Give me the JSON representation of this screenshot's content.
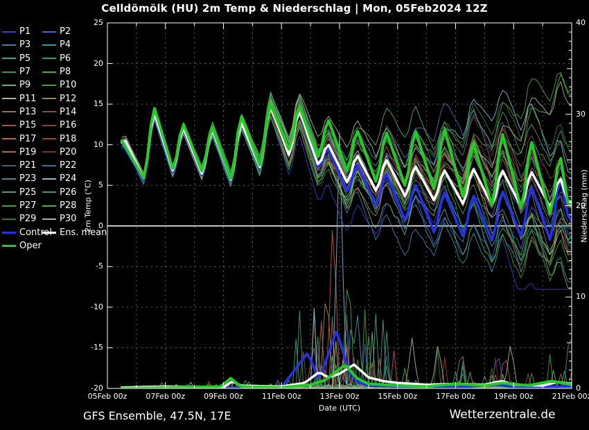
{
  "title": "Celldömölk  (HU)  2m Temp & Niederschlag | Mon, 05Feb2024 12Z",
  "footer": {
    "left": "GFS Ensemble, 47.5N, 17E",
    "right": "Wetterzentrale.de"
  },
  "legend": {
    "members": [
      {
        "label": "P1",
        "color": "#3a3ad0"
      },
      {
        "label": "P2",
        "color": "#3c64e0"
      },
      {
        "label": "P3",
        "color": "#3880b4"
      },
      {
        "label": "P4",
        "color": "#28a0a0"
      },
      {
        "label": "P5",
        "color": "#30aa8c"
      },
      {
        "label": "P6",
        "color": "#2ea060"
      },
      {
        "label": "P7",
        "color": "#30a044"
      },
      {
        "label": "P8",
        "color": "#42b042"
      },
      {
        "label": "P9",
        "color": "#7aa87a"
      },
      {
        "label": "P10",
        "color": "#48a040"
      },
      {
        "label": "P11",
        "color": "#b4b478"
      },
      {
        "label": "P12",
        "color": "#a08652"
      },
      {
        "label": "P13",
        "color": "#96704a"
      },
      {
        "label": "P14",
        "color": "#7e583e"
      },
      {
        "label": "P15",
        "color": "#a05448"
      },
      {
        "label": "P16",
        "color": "#8a4434"
      },
      {
        "label": "P17",
        "color": "#c05a44"
      },
      {
        "label": "P18",
        "color": "#a43c2e"
      },
      {
        "label": "P19",
        "color": "#b66455"
      },
      {
        "label": "P20",
        "color": "#7e2e2e"
      },
      {
        "label": "P21",
        "color": "#48607e"
      },
      {
        "label": "P22",
        "color": "#4c6ea0"
      },
      {
        "label": "P23",
        "color": "#3a8a9a"
      },
      {
        "label": "P24",
        "color": "#7cbad6"
      },
      {
        "label": "P25",
        "color": "#4a9c7c"
      },
      {
        "label": "P26",
        "color": "#3aa06a"
      },
      {
        "label": "P27",
        "color": "#40a442"
      },
      {
        "label": "P28",
        "color": "#4cae4c"
      },
      {
        "label": "P29",
        "color": "#2e7e2e"
      },
      {
        "label": "P30",
        "color": "#b2b284"
      }
    ],
    "control": {
      "label": "Control",
      "color": "#2233ee"
    },
    "ens_mean": {
      "label": "Ens. mean",
      "color": "#ffffff"
    },
    "oper": {
      "label": "Oper",
      "color": "#22cc22"
    }
  },
  "chart_data": {
    "type": "line",
    "x_axis": {
      "label": "Date (UTC)",
      "days_total": 16,
      "tick_labels": [
        "05Feb 00z",
        "07Feb 00z",
        "09Feb 00z",
        "11Feb 00z",
        "13Feb 00z",
        "15Feb 00z",
        "17Feb 00z",
        "19Feb 00z",
        "21Feb 00z"
      ],
      "label_day_offsets": [
        0,
        2,
        4,
        6,
        8,
        10,
        12,
        14,
        16
      ],
      "gridline_every_days": 1
    },
    "y_left": {
      "label": "2m Temp (°C)",
      "min": -20,
      "max": 25,
      "tick_step": 5,
      "tick_values": [
        25,
        20,
        15,
        10,
        5,
        0,
        -5,
        -10,
        -15,
        -20
      ],
      "tick_labels": [
        "25",
        "20",
        "15",
        "10",
        "5",
        "0",
        "-5",
        "-10",
        "-15",
        "-20"
      ],
      "zero_line": 0
    },
    "y_right": {
      "label": "Niederschlag (mm)",
      "min": 0,
      "max": 40,
      "tick_values": [
        0,
        10,
        20,
        30,
        40
      ],
      "tick_labels": [
        "0",
        "10",
        "20",
        "30",
        "40"
      ]
    },
    "temperature_c": {
      "ens_mean": [
        [
          0.5,
          10.3
        ],
        [
          0.58,
          10.8
        ],
        [
          1.29,
          5.6
        ],
        [
          1.58,
          14.3
        ],
        [
          2.29,
          6.4
        ],
        [
          2.58,
          12.4
        ],
        [
          3.29,
          6.1
        ],
        [
          3.58,
          12.2
        ],
        [
          4.29,
          5.3
        ],
        [
          4.58,
          13.1
        ],
        [
          5.29,
          6.9
        ],
        [
          5.58,
          15.1
        ],
        [
          6.29,
          8.4
        ],
        [
          6.58,
          14.6
        ],
        [
          7.29,
          7.2
        ],
        [
          7.58,
          10.3
        ],
        [
          8.29,
          5.1
        ],
        [
          8.58,
          8.9
        ],
        [
          9.29,
          4.1
        ],
        [
          9.58,
          8.4
        ],
        [
          10.29,
          3.4
        ],
        [
          10.58,
          7.6
        ],
        [
          11.29,
          2.9
        ],
        [
          11.58,
          7.1
        ],
        [
          12.29,
          2.5
        ],
        [
          12.58,
          7.3
        ],
        [
          13.29,
          2.3
        ],
        [
          13.58,
          7.1
        ],
        [
          14.29,
          2.1
        ],
        [
          14.58,
          6.9
        ],
        [
          15.29,
          2.1
        ],
        [
          15.58,
          6.3
        ],
        [
          15.85,
          3.1
        ],
        [
          16,
          2.9
        ]
      ],
      "control": [
        [
          0.5,
          10.2
        ],
        [
          1.29,
          5.4
        ],
        [
          1.58,
          14.1
        ],
        [
          2.29,
          6.2
        ],
        [
          2.58,
          12.2
        ],
        [
          3.29,
          5.9
        ],
        [
          3.58,
          12.1
        ],
        [
          4.29,
          5.1
        ],
        [
          4.58,
          13.3
        ],
        [
          5.29,
          6.7
        ],
        [
          5.58,
          15.3
        ],
        [
          6.29,
          8.7
        ],
        [
          6.58,
          15.0
        ],
        [
          7.29,
          6.8
        ],
        [
          7.58,
          9.8
        ],
        [
          8.29,
          3.9
        ],
        [
          8.58,
          7.8
        ],
        [
          9.29,
          2.2
        ],
        [
          9.58,
          6.8
        ],
        [
          10.29,
          0.4
        ],
        [
          10.58,
          5.4
        ],
        [
          11.29,
          -1.1
        ],
        [
          11.58,
          4.4
        ],
        [
          12.29,
          -1.6
        ],
        [
          12.58,
          4.1
        ],
        [
          13.29,
          -2.1
        ],
        [
          13.58,
          4.6
        ],
        [
          14.29,
          -1.6
        ],
        [
          14.58,
          5.2
        ],
        [
          15.29,
          -2.1
        ],
        [
          15.58,
          6.6
        ],
        [
          15.85,
          1.4
        ],
        [
          16,
          0.6
        ]
      ],
      "oper": [
        [
          0.5,
          10.5
        ],
        [
          1.29,
          5.6
        ],
        [
          1.58,
          15.0
        ],
        [
          2.29,
          6.6
        ],
        [
          2.58,
          12.9
        ],
        [
          3.29,
          6.4
        ],
        [
          3.58,
          12.6
        ],
        [
          4.29,
          5.4
        ],
        [
          4.58,
          13.9
        ],
        [
          5.29,
          7.1
        ],
        [
          5.58,
          15.4
        ],
        [
          6.29,
          9.1
        ],
        [
          6.58,
          15.1
        ],
        [
          7.29,
          8.1
        ],
        [
          7.58,
          13.4
        ],
        [
          8.29,
          6.4
        ],
        [
          8.58,
          12.1
        ],
        [
          9.29,
          5.1
        ],
        [
          9.58,
          11.9
        ],
        [
          10.29,
          4.6
        ],
        [
          10.58,
          12.1
        ],
        [
          11.29,
          4.1
        ],
        [
          11.58,
          12.4
        ],
        [
          12.29,
          3.1
        ],
        [
          12.58,
          10.6
        ],
        [
          13.29,
          2.1
        ],
        [
          13.58,
          11.9
        ],
        [
          14.29,
          1.6
        ],
        [
          14.58,
          10.9
        ],
        [
          15.29,
          0.9
        ],
        [
          15.58,
          9.4
        ],
        [
          15.85,
          2.9
        ],
        [
          16,
          2.4
        ]
      ]
    },
    "precipitation_mm": {
      "ens_mean": [
        [
          0.5,
          0.1
        ],
        [
          2,
          0.2
        ],
        [
          4,
          0.1
        ],
        [
          4.3,
          0.8
        ],
        [
          4.6,
          0.3
        ],
        [
          6,
          0.2
        ],
        [
          6.8,
          0.6
        ],
        [
          7.3,
          1.8
        ],
        [
          7.6,
          1.2
        ],
        [
          8.0,
          1.6
        ],
        [
          8.5,
          2.6
        ],
        [
          9.0,
          1.2
        ],
        [
          9.5,
          0.8
        ],
        [
          10,
          0.6
        ],
        [
          11,
          0.4
        ],
        [
          12,
          0.5
        ],
        [
          13,
          0.4
        ],
        [
          13.6,
          0.8
        ],
        [
          14,
          0.4
        ],
        [
          15,
          0.3
        ],
        [
          15.5,
          0.7
        ],
        [
          16,
          0.5
        ]
      ],
      "control": [
        [
          0.5,
          0
        ],
        [
          4,
          0.1
        ],
        [
          6,
          0.1
        ],
        [
          6.9,
          3.9
        ],
        [
          7.3,
          0.9
        ],
        [
          7.9,
          6.4
        ],
        [
          8.3,
          2.1
        ],
        [
          8.6,
          0.7
        ],
        [
          9,
          0.3
        ],
        [
          10,
          0.2
        ],
        [
          12,
          0.1
        ],
        [
          13.5,
          0.4
        ],
        [
          14,
          0.1
        ],
        [
          16,
          0.2
        ]
      ],
      "oper": [
        [
          0.5,
          0
        ],
        [
          3.9,
          0.2
        ],
        [
          4.25,
          1.1
        ],
        [
          4.6,
          0.2
        ],
        [
          6,
          0.1
        ],
        [
          7,
          0.4
        ],
        [
          7.5,
          0.9
        ],
        [
          8.2,
          2.6
        ],
        [
          8.6,
          1.1
        ],
        [
          9,
          0.5
        ],
        [
          10,
          0.3
        ],
        [
          11,
          0.2
        ],
        [
          12,
          0.5
        ],
        [
          13,
          0.3
        ],
        [
          13.6,
          0.6
        ],
        [
          14.5,
          0.3
        ],
        [
          15.3,
          0.8
        ],
        [
          16,
          0.4
        ]
      ],
      "member_spikes": [
        {
          "member": "P24",
          "t": 8.0,
          "mm": 28
        },
        {
          "member": "P17",
          "t": 7.78,
          "mm": 20
        },
        {
          "member": "P12",
          "t": 7.55,
          "mm": 12
        },
        {
          "member": "P27",
          "t": 8.3,
          "mm": 14
        },
        {
          "member": "P4",
          "t": 8.6,
          "mm": 9
        },
        {
          "member": "P19",
          "t": 7.1,
          "mm": 5
        },
        {
          "member": "P11",
          "t": 10.5,
          "mm": 5.5
        },
        {
          "member": "P30",
          "t": 11.4,
          "mm": 5.2
        },
        {
          "member": "P13",
          "t": 12.2,
          "mm": 4.5
        },
        {
          "member": "P30",
          "t": 13.9,
          "mm": 5.2
        },
        {
          "member": "P2",
          "t": 13.45,
          "mm": 4.2
        },
        {
          "member": "P17",
          "t": 13.7,
          "mm": 4.0
        },
        {
          "member": "P23",
          "t": 15.95,
          "mm": 7.0
        }
      ]
    }
  }
}
